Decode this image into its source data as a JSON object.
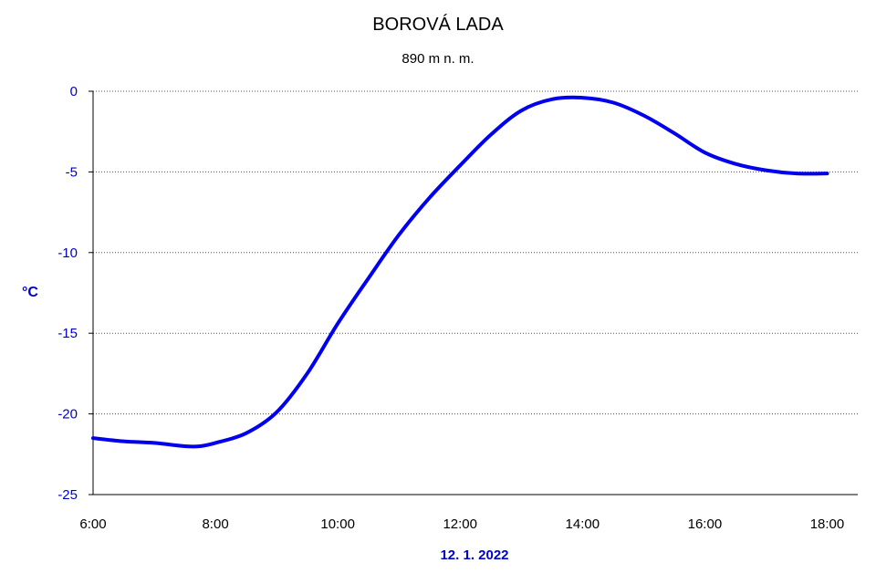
{
  "chart_data": {
    "type": "line",
    "title": "BOROVÁ LADA",
    "subtitle": "890 m n. m.",
    "ylabel": "°C",
    "xlabel": "12. 1. 2022",
    "xlim": [
      6,
      18.5
    ],
    "ylim": [
      -25,
      0
    ],
    "x_ticks": [
      6,
      8,
      10,
      12,
      14,
      16,
      18
    ],
    "x_tick_labels": [
      "6:00",
      "8:00",
      "10:00",
      "12:00",
      "14:00",
      "16:00",
      "18:00"
    ],
    "y_ticks": [
      0,
      -5,
      -10,
      -15,
      -20,
      -25
    ],
    "y_tick_labels": [
      "0",
      "-5",
      "-10",
      "-15",
      "-20",
      "-25"
    ],
    "grid": "horizontal-dotted",
    "series": [
      {
        "color": "#0000ee",
        "x": [
          6.0,
          6.5,
          7.0,
          7.5,
          7.75,
          8.0,
          8.5,
          9.0,
          9.5,
          10.0,
          10.5,
          11.0,
          11.5,
          12.0,
          12.5,
          13.0,
          13.5,
          14.0,
          14.5,
          15.0,
          15.5,
          16.0,
          16.5,
          17.0,
          17.5,
          18.0
        ],
        "y": [
          -21.5,
          -21.7,
          -21.8,
          -22.0,
          -22.0,
          -21.8,
          -21.2,
          -19.9,
          -17.5,
          -14.4,
          -11.6,
          -8.9,
          -6.6,
          -4.6,
          -2.7,
          -1.2,
          -0.5,
          -0.4,
          -0.7,
          -1.5,
          -2.6,
          -3.8,
          -4.5,
          -4.9,
          -5.1,
          -5.1
        ]
      }
    ]
  }
}
